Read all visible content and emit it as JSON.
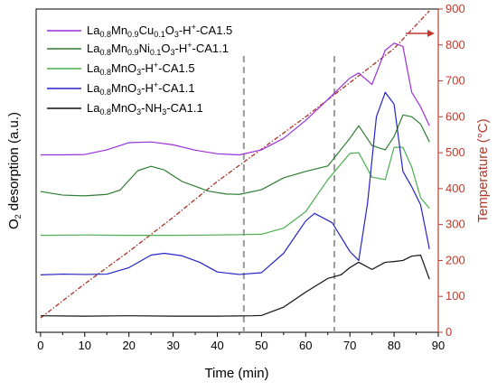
{
  "chart_data": {
    "type": "line",
    "xlabel": "Time (min)",
    "ylabel": "O2 desorption (a.u.)",
    "y2label": "Temperature (°C)",
    "xlim": [
      -1,
      90
    ],
    "xticks": [
      0,
      10,
      20,
      30,
      40,
      50,
      60,
      70,
      80,
      90
    ],
    "y2lim": [
      0,
      900
    ],
    "y2ticks": [
      0,
      100,
      200,
      300,
      400,
      500,
      600,
      700,
      800,
      900
    ],
    "y_axis_tick_labels": "none",
    "grid": false,
    "legend_position": "top-left",
    "vertical_markers": [
      46,
      66.5
    ],
    "temperature_series": {
      "color": "#a93226",
      "style": "dash-dot",
      "x": [
        0,
        10,
        20,
        30,
        40,
        50,
        60,
        70,
        80,
        88
      ],
      "y": [
        40,
        135,
        225,
        320,
        420,
        510,
        600,
        695,
        790,
        895
      ]
    },
    "series": [
      {
        "name": "La0.8Mn0.9Cu0.1O3-H+-CA1.5",
        "color": "#9b30d9",
        "x": [
          0,
          5,
          10,
          15,
          20,
          25,
          30,
          35,
          40,
          45,
          50,
          55,
          60,
          65,
          70,
          72,
          75,
          78,
          80,
          82,
          84,
          86,
          88
        ],
        "y": [
          494,
          494,
          495,
          508,
          528,
          530,
          522,
          507,
          497,
          494,
          508,
          540,
          590,
          648,
          708,
          722,
          690,
          785,
          805,
          796,
          668,
          628,
          575
        ]
      },
      {
        "name": "La0.8Mn0.9Ni0.1O3-H+-CA1.1",
        "color": "#2e7d32",
        "x": [
          0,
          5,
          10,
          15,
          18,
          22,
          25,
          28,
          32,
          38,
          42,
          45,
          50,
          55,
          60,
          65,
          70,
          72,
          75,
          78,
          80,
          82,
          84,
          86,
          88
        ],
        "y": [
          392,
          382,
          380,
          384,
          396,
          450,
          462,
          452,
          420,
          393,
          385,
          384,
          397,
          430,
          448,
          463,
          540,
          575,
          520,
          508,
          545,
          605,
          600,
          580,
          530
        ]
      },
      {
        "name": "La0.8MnO3-H+-CA1.5",
        "color": "#4caf50",
        "x": [
          0,
          10,
          20,
          30,
          40,
          45,
          50,
          55,
          60,
          65,
          70,
          72,
          75,
          78,
          80,
          82,
          84,
          86,
          88
        ],
        "y": [
          270,
          271,
          270,
          270,
          271,
          272,
          273,
          290,
          336,
          425,
          498,
          500,
          432,
          425,
          515,
          515,
          460,
          375,
          345
        ]
      },
      {
        "name": "La0.8MnO3-H+-CA1.1",
        "color": "#2424c8",
        "x": [
          0,
          5,
          10,
          15,
          20,
          25,
          28,
          32,
          36,
          40,
          45,
          50,
          55,
          60,
          62,
          66,
          70,
          72,
          74,
          76,
          78,
          80,
          82,
          84,
          86,
          88
        ],
        "y": [
          160,
          162,
          161,
          162,
          180,
          215,
          220,
          213,
          195,
          168,
          161,
          166,
          220,
          310,
          331,
          305,
          225,
          200,
          360,
          600,
          668,
          635,
          448,
          405,
          355,
          232
        ]
      },
      {
        "name": "La0.8MnO3-NH3-CA1.1",
        "color": "#111111",
        "x": [
          0,
          10,
          20,
          30,
          40,
          48,
          50,
          55,
          60,
          65,
          68,
          70,
          72,
          75,
          78,
          80,
          82,
          84,
          86,
          88
        ],
        "y": [
          46,
          45,
          46,
          45,
          45,
          46,
          47,
          70,
          112,
          150,
          160,
          180,
          195,
          175,
          195,
          197,
          200,
          212,
          215,
          148
        ]
      }
    ]
  }
}
